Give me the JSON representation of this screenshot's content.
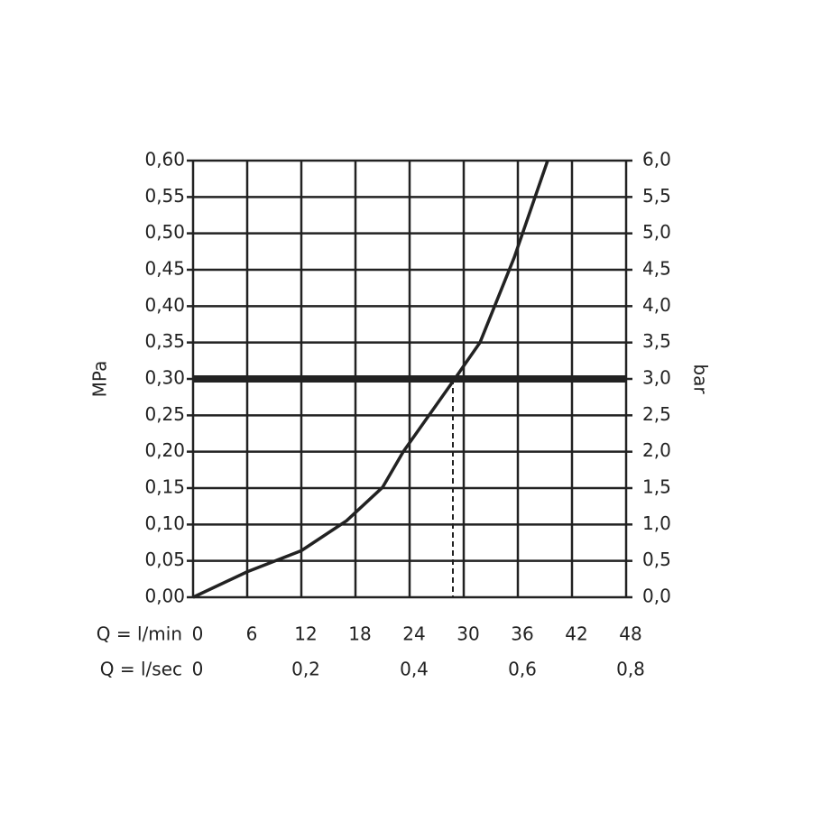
{
  "chart_data": {
    "type": "line",
    "xlabel": "Q = l/min",
    "x2label": "Q = l/sec",
    "ylabel": "MPa",
    "y2label": "bar",
    "xlim": [
      0,
      48
    ],
    "xticks": [
      0,
      6,
      12,
      18,
      24,
      30,
      36,
      42,
      48
    ],
    "x2lim": [
      0,
      0.8
    ],
    "x2ticks": [
      0,
      {
        "value": 0.2,
        "label": "0,2"
      },
      {
        "value": 0.4,
        "label": "0,4"
      },
      {
        "value": 0.6,
        "label": "0,6"
      },
      {
        "value": 0.8,
        "label": "0,8"
      }
    ],
    "ylim": [
      0,
      0.6
    ],
    "yticks": [
      {
        "value": 0,
        "label": "0,00"
      },
      {
        "value": 0.05,
        "label": "0,05"
      },
      {
        "value": 0.1,
        "label": "0,10"
      },
      {
        "value": 0.15,
        "label": "0,15"
      },
      {
        "value": 0.2,
        "label": "0,20"
      },
      {
        "value": 0.25,
        "label": "0,25"
      },
      {
        "value": 0.3,
        "label": "0,30"
      },
      {
        "value": 0.35,
        "label": "0,35"
      },
      {
        "value": 0.4,
        "label": "0,40"
      },
      {
        "value": 0.45,
        "label": "0,45"
      },
      {
        "value": 0.5,
        "label": "0,50"
      },
      {
        "value": 0.55,
        "label": "0,55"
      },
      {
        "value": 0.6,
        "label": "0,60"
      }
    ],
    "y2lim": [
      0,
      6
    ],
    "y2ticks": [
      {
        "value": 0,
        "label": "0,0"
      },
      {
        "value": 0.5,
        "label": "0,5"
      },
      {
        "value": 1,
        "label": "1,0"
      },
      {
        "value": 1.5,
        "label": "1,5"
      },
      {
        "value": 2,
        "label": "2,0"
      },
      {
        "value": 2.5,
        "label": "2,5"
      },
      {
        "value": 3,
        "label": "3,0"
      },
      {
        "value": 3.5,
        "label": "3,5"
      },
      {
        "value": 4,
        "label": "4,0"
      },
      {
        "value": 4.5,
        "label": "4,5"
      },
      {
        "value": 5,
        "label": "5,0"
      },
      {
        "value": 5.5,
        "label": "5,5"
      },
      {
        "value": 6,
        "label": "6,0"
      }
    ],
    "grid": true,
    "x": [
      0,
      6,
      12,
      17,
      21,
      23.3,
      29,
      31.8,
      35.6,
      39.3
    ],
    "series": [
      {
        "color": "#222222",
        "values": [
          0,
          0.035,
          0.064,
          0.105,
          0.151,
          0.2,
          0.3,
          0.35,
          0.467,
          0.6
        ]
      }
    ],
    "reference_y": 0.3,
    "reference_x": 28.8
  }
}
